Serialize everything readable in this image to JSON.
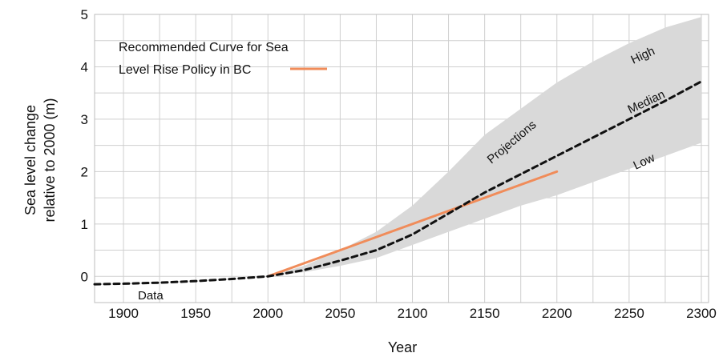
{
  "chart_data": {
    "type": "line",
    "xlabel": "Year",
    "ylabel_lines": [
      "Sea level change",
      "relative to 2000 (m)"
    ],
    "xlim": [
      1880,
      2305
    ],
    "ylim": [
      -0.5,
      5
    ],
    "x_ticks": [
      1900,
      1950,
      2000,
      2050,
      2100,
      2150,
      2200,
      2250,
      2300
    ],
    "y_ticks": [
      0,
      1,
      2,
      3,
      4,
      5
    ],
    "grid": true,
    "legend_position": "top-left",
    "legend_lines": [
      "Recommended Curve for Sea",
      "Level Rise Policy in BC"
    ],
    "colors": {
      "median": "#111111",
      "recommended": "#f08c5a",
      "band": "#d9d9d9",
      "grid": "#cfcfcf"
    },
    "series": [
      {
        "name": "Median",
        "style": "dashed",
        "x": [
          1880,
          1900,
          1925,
          1950,
          1975,
          2000,
          2025,
          2050,
          2075,
          2100,
          2125,
          2150,
          2175,
          2200,
          2225,
          2250,
          2275,
          2300
        ],
        "y": [
          -0.15,
          -0.14,
          -0.12,
          -0.09,
          -0.05,
          0,
          0.12,
          0.3,
          0.5,
          0.8,
          1.2,
          1.6,
          1.95,
          2.3,
          2.65,
          3.0,
          3.35,
          3.72
        ]
      },
      {
        "name": "Recommended Curve for Sea Level Rise Policy in BC",
        "style": "solid",
        "x": [
          2000,
          2200
        ],
        "y": [
          0,
          2.0
        ]
      }
    ],
    "projection_band": {
      "x": [
        2000,
        2025,
        2050,
        2075,
        2100,
        2125,
        2150,
        2175,
        2200,
        2225,
        2250,
        2275,
        2300
      ],
      "high": [
        0,
        0.2,
        0.5,
        0.85,
        1.35,
        2.0,
        2.7,
        3.2,
        3.7,
        4.1,
        4.45,
        4.75,
        4.95
      ],
      "low": [
        0,
        0.08,
        0.2,
        0.35,
        0.6,
        0.85,
        1.1,
        1.35,
        1.55,
        1.8,
        2.05,
        2.3,
        2.55
      ]
    },
    "annotations": {
      "high": "High",
      "median": "Median",
      "low": "Low",
      "projections": "Projections",
      "data": "Data"
    }
  }
}
